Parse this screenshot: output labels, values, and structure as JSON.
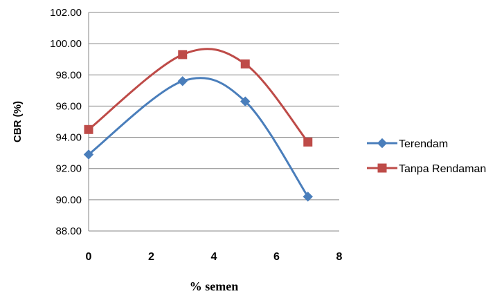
{
  "chart_data": {
    "type": "line",
    "title": "",
    "xlabel": "% semen",
    "ylabel": "CBR (%)",
    "xlim": [
      0,
      8
    ],
    "ylim": [
      88,
      102
    ],
    "x_ticks": [
      "0",
      "2",
      "4",
      "6",
      "8"
    ],
    "y_ticks": [
      "88.00",
      "90.00",
      "92.00",
      "94.00",
      "96.00",
      "98.00",
      "100.00",
      "102.00"
    ],
    "grid": "horizontal",
    "legend_position": "right",
    "smooth": true,
    "series": [
      {
        "name": "Terendam",
        "color": "#4a7ebb",
        "marker": "diamond",
        "x": [
          0,
          3,
          5,
          7
        ],
        "values": [
          92.9,
          97.6,
          96.3,
          90.2
        ]
      },
      {
        "name": "Tanpa Rendaman",
        "color": "#be4b48",
        "marker": "square",
        "x": [
          0,
          3,
          5,
          7
        ],
        "values": [
          94.5,
          99.3,
          98.7,
          93.7
        ]
      }
    ]
  }
}
